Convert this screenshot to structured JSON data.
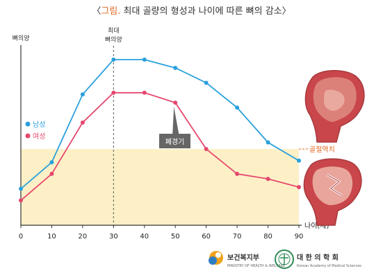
{
  "title": {
    "open_bracket": "〈",
    "accent": "그림.",
    "rest": " 최대 골량의 형성과 나이에 따른 뼈의 감소",
    "close_bracket": "〉"
  },
  "peak_label": [
    "최대",
    "뼈의양"
  ],
  "menopause_label": "폐경기",
  "osteoporosis_label": "골절역치",
  "branding": {
    "ministry": "보건복지부",
    "ministry_sub": "MINISTRY OF HEALTH & WELFARE",
    "academy": "대 한 의 학 회",
    "academy_sub": "Korean Academy of Medical Sciences"
  },
  "chart_data": {
    "type": "line",
    "title": "",
    "xlabel": "나이(세)",
    "ylabel": "뼈의양",
    "x": [
      0,
      10,
      20,
      30,
      40,
      50,
      60,
      70,
      80,
      90
    ],
    "xlim": [
      0,
      90
    ],
    "ylim": [
      0,
      100
    ],
    "threshold": 46,
    "peak_x": 30,
    "menopause_x": 50,
    "series": [
      {
        "name": "남성",
        "color": "#2aa0dc",
        "values": [
          22,
          38,
          79,
          100,
          100,
          95,
          86,
          71,
          50,
          39
        ]
      },
      {
        "name": "여성",
        "color": "#e5476e",
        "values": [
          15,
          31,
          62,
          80,
          80,
          74,
          46,
          31,
          28,
          23
        ]
      }
    ],
    "threshold_fill": "#fdf0c6",
    "grid": false,
    "legend_position": "left"
  }
}
